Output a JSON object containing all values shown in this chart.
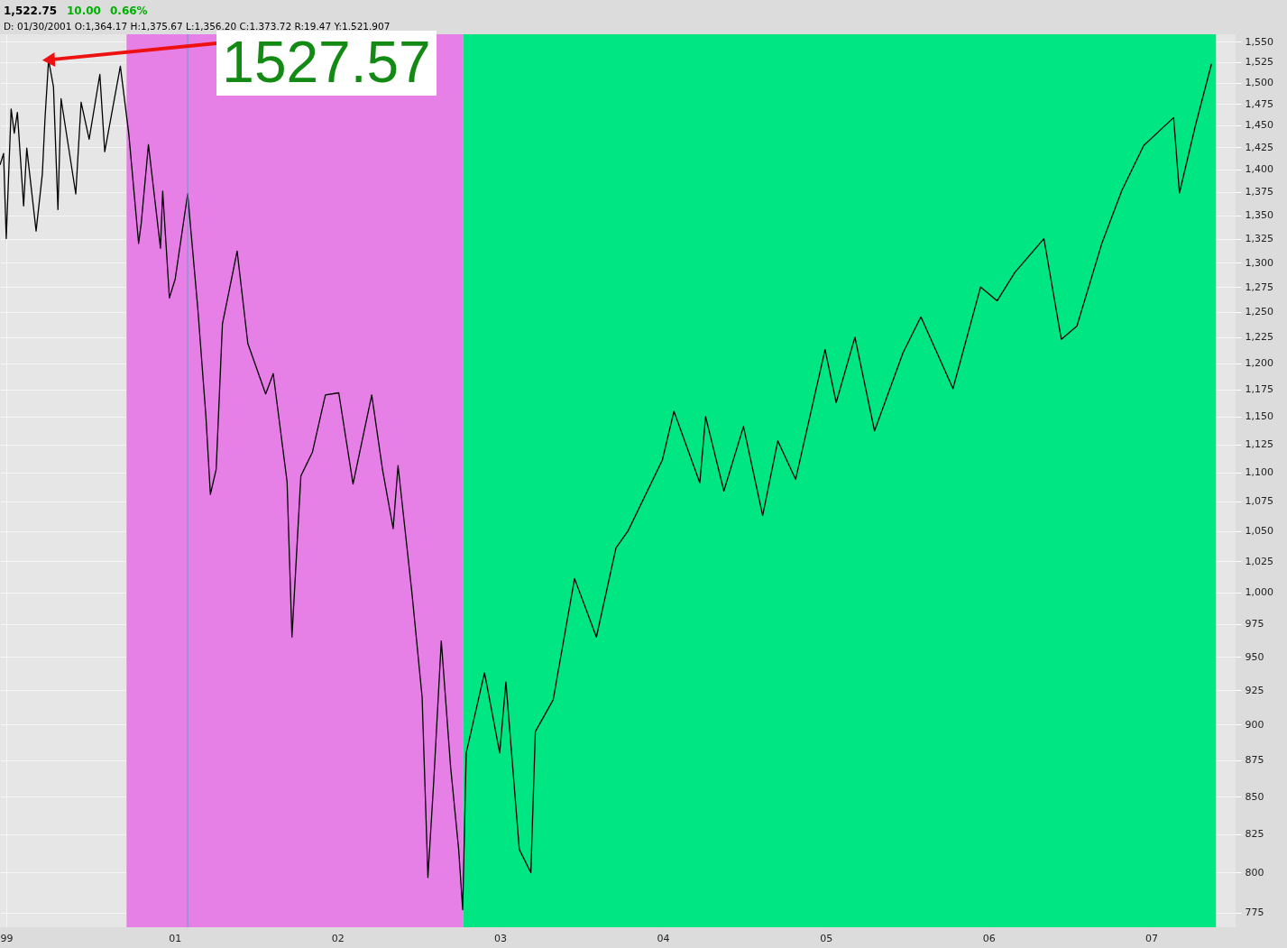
{
  "chart_data": {
    "type": "line",
    "annotations": [
      "1,522.75",
      "10.00",
      "0.66%",
      "D: 01/30/2001 O:1,364.17 H:1,375.67 L:1,356.20 C:1.373.72 R:19.47 Y:1.521.907",
      {
        "text": "1527.57",
        "x": "2000-03-24",
        "y": 1527.57
      }
    ],
    "x": [
      "1999-12-06",
      "1999-12-14",
      "1999-12-20",
      "1999-12-31",
      "2000-01-07",
      "2000-01-14",
      "2000-01-28",
      "2000-02-04",
      "2000-02-25",
      "2000-03-10",
      "2000-03-16",
      "2000-03-24",
      "2000-04-04",
      "2000-04-14",
      "2000-04-21",
      "2000-05-24",
      "2000-06-05",
      "2000-06-23",
      "2000-07-17",
      "2000-07-28",
      "2000-09-01",
      "2000-09-20",
      "2000-10-12",
      "2000-10-18",
      "2000-11-03",
      "2000-11-30",
      "2000-12-05",
      "2000-12-20",
      "2001-01-02",
      "2001-01-30",
      "2001-02-22",
      "2001-03-12",
      "2001-03-22",
      "2001-04-04",
      "2001-04-18",
      "2001-05-21",
      "2001-06-14",
      "2001-07-24",
      "2001-08-10",
      "2001-09-10",
      "2001-09-21",
      "2001-10-11",
      "2001-11-06",
      "2001-12-05",
      "2002-01-04",
      "2002-02-05",
      "2002-03-19",
      "2002-04-12",
      "2002-05-06",
      "2002-05-17",
      "2002-06-17",
      "2002-07-10",
      "2002-07-23",
      "2002-08-05",
      "2002-08-22",
      "2002-09-12",
      "2002-09-30",
      "2002-10-09",
      "2002-10-17",
      "2002-11-27",
      "2002-12-31",
      "2003-01-14",
      "2003-02-13",
      "2003-03-11",
      "2003-03-21",
      "2003-04-30",
      "2003-06-17",
      "2003-08-05",
      "2003-09-18",
      "2003-10-15",
      "2003-12-31",
      "2004-01-26",
      "2004-03-24",
      "2004-04-06",
      "2004-05-17",
      "2004-06-30",
      "2004-08-12",
      "2004-09-15",
      "2004-10-25",
      "2004-12-30",
      "2005-01-24",
      "2005-03-07",
      "2005-04-20",
      "2005-06-23",
      "2005-08-02",
      "2005-10-13",
      "2005-12-14",
      "2006-01-20",
      "2006-03-01",
      "2006-05-05",
      "2006-06-13",
      "2006-07-18",
      "2006-09-12",
      "2006-10-27",
      "2006-12-15",
      "2007-02-20",
      "2007-03-05",
      "2007-04-10",
      "2007-05-16"
    ],
    "values": [
      1405,
      1418,
      1325,
      1469,
      1441,
      1465,
      1360,
      1424,
      1333,
      1395,
      1458,
      1527.57,
      1495,
      1356,
      1481,
      1373,
      1477,
      1434,
      1510,
      1420,
      1520,
      1440,
      1320,
      1342,
      1428,
      1315,
      1376,
      1264,
      1283,
      1373,
      1252,
      1150,
      1081,
      1103,
      1238,
      1312,
      1219,
      1171,
      1190,
      1092,
      965,
      1097,
      1118,
      1170,
      1172,
      1090,
      1170,
      1103,
      1052,
      1106,
      1000,
      920,
      797,
      860,
      962,
      870,
      815,
      776.76,
      880,
      938,
      880,
      931,
      815,
      800,
      895,
      918,
      1011,
      965,
      1036,
      1050,
      1111,
      1155,
      1091,
      1150,
      1084,
      1141,
      1063,
      1128,
      1094,
      1213,
      1163,
      1225,
      1137,
      1210,
      1245,
      1176,
      1275,
      1261,
      1290,
      1325,
      1223,
      1236,
      1320,
      1377,
      1427,
      1459,
      1374,
      1450,
      1522.75
    ],
    "color": "#000000",
    "log": true,
    "xlim": [
      "1999-12-06",
      "2007-07-09"
    ],
    "xticks": [
      {
        "value": "1999-12-20",
        "label": "99"
      },
      {
        "value": "2001-01-01",
        "label": "01"
      },
      {
        "value": "2002-01-01",
        "label": "02"
      },
      {
        "value": "2003-01-01",
        "label": "03"
      },
      {
        "value": "2004-01-01",
        "label": "04"
      },
      {
        "value": "2005-01-01",
        "label": "05"
      },
      {
        "value": "2006-01-01",
        "label": "06"
      },
      {
        "value": "2007-01-01",
        "label": "07"
      }
    ],
    "ylim": [
      766,
      1559
    ],
    "yticks": [
      775,
      800,
      825,
      850,
      875,
      900,
      925,
      950,
      975,
      {
        "value": 1000,
        "label": "1,000"
      },
      {
        "value": 1025,
        "label": "1,025"
      },
      {
        "value": 1050,
        "label": "1,050"
      },
      {
        "value": 1075,
        "label": "1,075"
      },
      {
        "value": 1100,
        "label": "1,100"
      },
      {
        "value": 1125,
        "label": "1,125"
      },
      {
        "value": 1150,
        "label": "1,150"
      },
      {
        "value": 1175,
        "label": "1,175"
      },
      {
        "value": 1200,
        "label": "1,200"
      },
      {
        "value": 1225,
        "label": "1,225"
      },
      {
        "value": 1250,
        "label": "1,250"
      },
      {
        "value": 1275,
        "label": "1,275"
      },
      {
        "value": 1300,
        "label": "1,300"
      },
      {
        "value": 1325,
        "label": "1,325"
      },
      {
        "value": 1350,
        "label": "1,350"
      },
      {
        "value": 1375,
        "label": "1,375"
      },
      {
        "value": 1400,
        "label": "1,400"
      },
      {
        "value": 1425,
        "label": "1,425"
      },
      {
        "value": 1450,
        "label": "1,450"
      },
      {
        "value": 1475,
        "label": "1,475"
      },
      {
        "value": 1500,
        "label": "1,500"
      },
      {
        "value": 1525,
        "label": "1,525"
      },
      {
        "value": 1550,
        "label": "1,550"
      }
    ],
    "bands": [
      {
        "axis": "x",
        "from": "2000-09-15",
        "to": "2002-10-10",
        "color": "#e67fe6"
      },
      {
        "axis": "x",
        "from": "2002-10-10",
        "to": "2007-05-26",
        "color": "#00e682"
      }
    ],
    "ref_lines": [
      {
        "axis": "x",
        "value": "2001-01-30",
        "color": "#6a9cc8"
      }
    ],
    "grid": true,
    "line_style": "solid",
    "marker": "none"
  }
}
